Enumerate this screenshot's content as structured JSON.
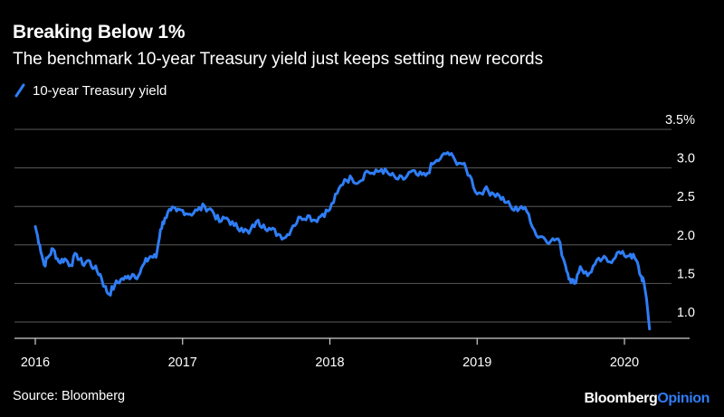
{
  "header": {
    "title": "Breaking Below 1%",
    "subtitle": "The benchmark 10-year Treasury yield just keeps setting new records"
  },
  "footer": {
    "source": "Source: Bloomberg",
    "brand_part1": "Bloomberg",
    "brand_part2": "Opinion"
  },
  "colors": {
    "background": "#000000",
    "line": "#2f7df6",
    "grid": "#5a5a5a",
    "axis": "#d0d0d0",
    "text": "#ffffff"
  },
  "chart_data": {
    "type": "line",
    "title": "Breaking Below 1%",
    "subtitle": "The benchmark 10-year Treasury yield just keeps setting new records",
    "xlabel": "",
    "ylabel": "",
    "ylim": [
      0.8,
      3.5
    ],
    "xlim": [
      2016.0,
      2020.45
    ],
    "grid": true,
    "y_ticks": [
      1.0,
      1.5,
      2.0,
      2.5,
      3.0,
      3.5
    ],
    "y_tick_labels": [
      "1.0",
      "1.5",
      "2.0",
      "2.5",
      "3.0",
      "3.5%"
    ],
    "x_ticks": [
      2016,
      2017,
      2018,
      2019,
      2020
    ],
    "x_tick_labels": [
      "2016",
      "2017",
      "2018",
      "2019",
      "2020"
    ],
    "legend_position": "top-left",
    "series": [
      {
        "name": "10-year Treasury yield",
        "color": "#2f7df6",
        "x": [
          2016.0,
          2016.03,
          2016.06,
          2016.09,
          2016.12,
          2016.16,
          2016.2,
          2016.24,
          2016.28,
          2016.32,
          2016.36,
          2016.4,
          2016.44,
          2016.47,
          2016.5,
          2016.54,
          2016.58,
          2016.62,
          2016.66,
          2016.7,
          2016.74,
          2016.78,
          2016.82,
          2016.85,
          2016.88,
          2016.92,
          2016.96,
          2017.0,
          2017.05,
          2017.1,
          2017.15,
          2017.2,
          2017.25,
          2017.3,
          2017.35,
          2017.4,
          2017.45,
          2017.5,
          2017.55,
          2017.6,
          2017.65,
          2017.7,
          2017.75,
          2017.8,
          2017.85,
          2017.9,
          2017.95,
          2018.0,
          2018.05,
          2018.1,
          2018.15,
          2018.2,
          2018.25,
          2018.3,
          2018.35,
          2018.4,
          2018.45,
          2018.5,
          2018.55,
          2018.6,
          2018.65,
          2018.7,
          2018.75,
          2018.8,
          2018.85,
          2018.9,
          2018.95,
          2019.0,
          2019.05,
          2019.1,
          2019.15,
          2019.2,
          2019.25,
          2019.3,
          2019.35,
          2019.4,
          2019.45,
          2019.5,
          2019.55,
          2019.6,
          2019.63,
          2019.66,
          2019.7,
          2019.75,
          2019.8,
          2019.85,
          2019.9,
          2019.95,
          2020.0,
          2020.04,
          2020.08,
          2020.11,
          2020.13,
          2020.15,
          2020.17
        ],
        "values": [
          2.24,
          2.0,
          1.74,
          1.85,
          1.95,
          1.78,
          1.82,
          1.74,
          1.88,
          1.75,
          1.8,
          1.7,
          1.62,
          1.46,
          1.36,
          1.48,
          1.55,
          1.57,
          1.62,
          1.6,
          1.76,
          1.85,
          1.84,
          2.2,
          2.35,
          2.45,
          2.44,
          2.45,
          2.4,
          2.45,
          2.5,
          2.45,
          2.3,
          2.35,
          2.25,
          2.22,
          2.15,
          2.3,
          2.26,
          2.2,
          2.14,
          2.1,
          2.25,
          2.36,
          2.38,
          2.32,
          2.4,
          2.46,
          2.67,
          2.85,
          2.86,
          2.82,
          2.96,
          2.92,
          2.98,
          2.92,
          2.86,
          2.85,
          2.95,
          2.9,
          2.9,
          3.05,
          3.12,
          3.2,
          3.1,
          3.05,
          2.9,
          2.66,
          2.72,
          2.68,
          2.64,
          2.55,
          2.45,
          2.5,
          2.4,
          2.13,
          2.1,
          2.05,
          2.08,
          1.73,
          1.56,
          1.5,
          1.72,
          1.6,
          1.75,
          1.82,
          1.78,
          1.9,
          1.86,
          1.88,
          1.8,
          1.6,
          1.54,
          1.3,
          0.91
        ]
      }
    ]
  }
}
